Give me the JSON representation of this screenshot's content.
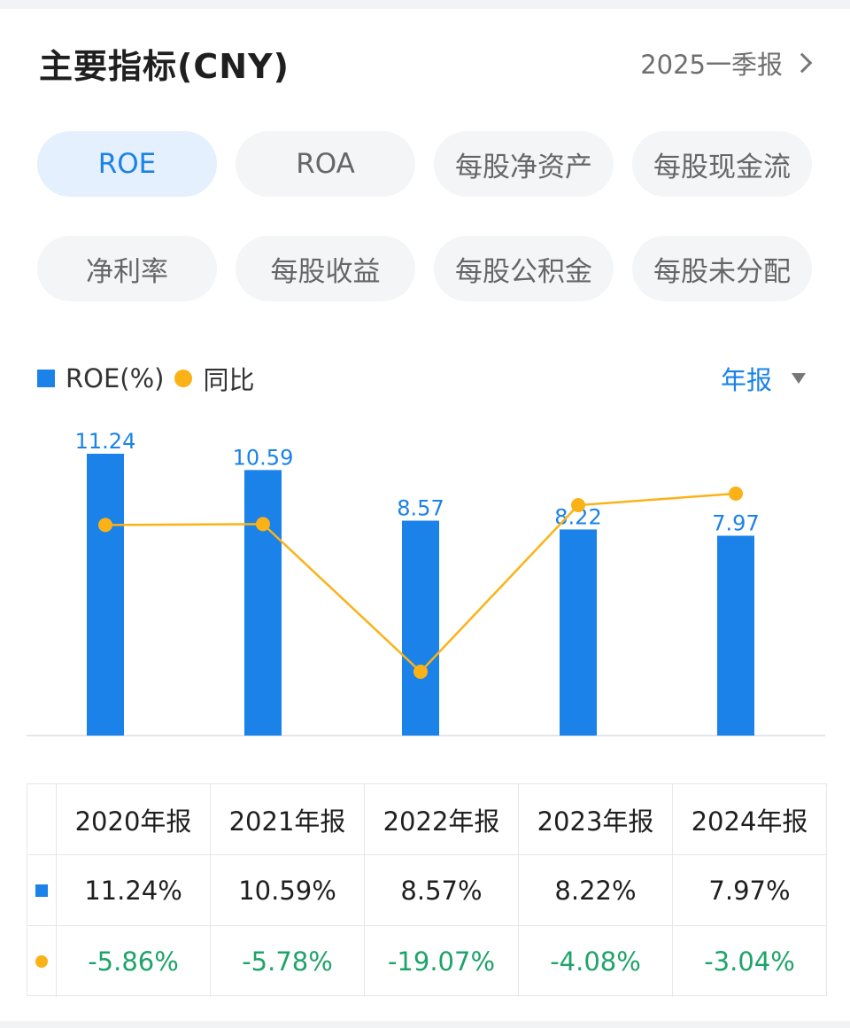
{
  "header": {
    "title": "主要指标(CNY)",
    "period": "2025一季报"
  },
  "tabs": [
    {
      "label": "ROE",
      "active": true
    },
    {
      "label": "ROA",
      "active": false
    },
    {
      "label": "每股净资产",
      "active": false
    },
    {
      "label": "每股现金流",
      "active": false
    },
    {
      "label": "净利率",
      "active": false
    },
    {
      "label": "每股收益",
      "active": false
    },
    {
      "label": "每股公积金",
      "active": false
    },
    {
      "label": "每股未分配",
      "active": false
    }
  ],
  "legend": {
    "bar_label": "ROE(%)",
    "line_label": "同比"
  },
  "frequency": {
    "label": "年报"
  },
  "colors": {
    "accent": "#1a82e8",
    "line": "#fbb216",
    "negative": "#1fa36a"
  },
  "chart_data": {
    "type": "bar",
    "categories": [
      "2020年报",
      "2021年报",
      "2022年报",
      "2023年报",
      "2024年报"
    ],
    "series": [
      {
        "name": "ROE(%)",
        "type": "bar",
        "values": [
          11.24,
          10.59,
          8.57,
          8.22,
          7.97
        ]
      },
      {
        "name": "同比",
        "type": "line",
        "values": [
          -5.86,
          -5.78,
          -19.07,
          -4.08,
          -3.04
        ]
      }
    ],
    "bar_labels": [
      "11.24",
      "10.59",
      "8.57",
      "8.22",
      "7.97"
    ],
    "grid": false,
    "legend_position": "top-left"
  },
  "table": {
    "headers": [
      "2020年报",
      "2021年报",
      "2022年报",
      "2023年报",
      "2024年报"
    ],
    "roe_row": [
      "11.24%",
      "10.59%",
      "8.57%",
      "8.22%",
      "7.97%"
    ],
    "yoy_row": [
      "-5.86%",
      "-5.78%",
      "-19.07%",
      "-4.08%",
      "-3.04%"
    ]
  }
}
